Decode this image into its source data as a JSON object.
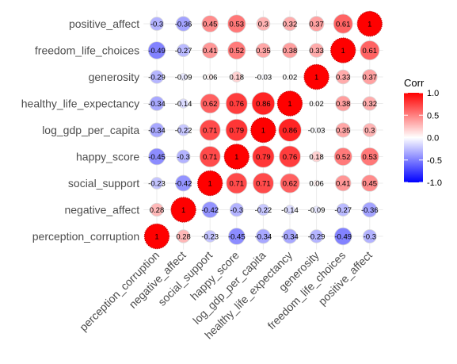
{
  "chart_data": {
    "type": "heatmap",
    "style": "circle",
    "row_labels": [
      "positive_affect",
      "freedom_life_choices",
      "generosity",
      "healthy_life_expectancy",
      "log_gdp_per_capita",
      "happy_score",
      "social_support",
      "negative_affect",
      "perception_corruption"
    ],
    "col_labels": [
      "perception_corruption",
      "negative_affect",
      "social_support",
      "happy_score",
      "log_gdp_per_capita",
      "healthy_life_expectancy",
      "generosity",
      "freedom_life_choices",
      "positive_affect"
    ],
    "values": [
      [
        -0.3,
        -0.36,
        0.45,
        0.53,
        0.3,
        0.32,
        0.37,
        0.61,
        1
      ],
      [
        -0.49,
        -0.27,
        0.41,
        0.52,
        0.35,
        0.38,
        0.33,
        1,
        0.61
      ],
      [
        -0.29,
        -0.09,
        0.06,
        0.18,
        -0.03,
        0.02,
        1,
        0.33,
        0.37
      ],
      [
        -0.34,
        -0.14,
        0.62,
        0.76,
        0.86,
        1,
        0.02,
        0.38,
        0.32
      ],
      [
        -0.34,
        -0.22,
        0.71,
        0.79,
        1,
        0.86,
        -0.03,
        0.35,
        0.3
      ],
      [
        -0.45,
        -0.3,
        0.71,
        1,
        0.79,
        0.76,
        0.18,
        0.52,
        0.53
      ],
      [
        -0.23,
        -0.42,
        1,
        0.71,
        0.71,
        0.62,
        0.06,
        0.41,
        0.45
      ],
      [
        0.28,
        1,
        -0.42,
        -0.3,
        -0.22,
        -0.14,
        -0.09,
        -0.27,
        -0.36
      ],
      [
        1,
        0.28,
        -0.23,
        -0.45,
        -0.34,
        -0.34,
        -0.29,
        -0.49,
        -0.3
      ]
    ],
    "value_labels": [
      [
        "-0.3",
        "-0.36",
        "0.45",
        "0.53",
        "0.3",
        "0.32",
        "0.37",
        "0.61",
        "1"
      ],
      [
        "-0.49",
        "-0.27",
        "0.41",
        "0.52",
        "0.35",
        "0.38",
        "0.33",
        "1",
        "0.61"
      ],
      [
        "-0.29",
        "-0.09",
        "0.06",
        "0.18",
        "-0.03",
        "0.02",
        "1",
        "0.33",
        "0.37"
      ],
      [
        "-0.34",
        "-0.14",
        "0.62",
        "0.76",
        "0.86",
        "1",
        "0.02",
        "0.38",
        "0.32"
      ],
      [
        "-0.34",
        "-0.22",
        "0.71",
        "0.79",
        "1",
        "0.86",
        "-0.03",
        "0.35",
        "0.3"
      ],
      [
        "-0.45",
        "-0.3",
        "0.71",
        "1",
        "0.79",
        "0.76",
        "0.18",
        "0.52",
        "0.53"
      ],
      [
        "-0.23",
        "-0.42",
        "1",
        "0.71",
        "0.71",
        "0.62",
        "0.06",
        "0.41",
        "0.45"
      ],
      [
        "0.28",
        "1",
        "-0.42",
        "-0.3",
        "-0.22",
        "-0.14",
        "-0.09",
        "-0.27",
        "-0.36"
      ],
      [
        "1",
        "0.28",
        "-0.23",
        "-0.45",
        "-0.34",
        "-0.34",
        "-0.29",
        "-0.49",
        "-0.3"
      ]
    ],
    "legend": {
      "title": "Corr",
      "ticks": [
        1.0,
        0.5,
        0.0,
        -0.5,
        -1.0
      ],
      "tick_labels": [
        "1.0",
        "0.5",
        "0.0",
        "-0.5",
        "-1.0"
      ],
      "range": [
        -1,
        1
      ],
      "placement": "right"
    },
    "colors": {
      "low": "#0000ff",
      "mid": "#ffffff",
      "high": "#ff0000",
      "circle_outline": "#d9d9d9",
      "grid": "#ebebeb"
    },
    "grid": true
  }
}
